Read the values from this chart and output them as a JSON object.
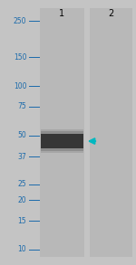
{
  "bg_color": "#c4c4c4",
  "lane_color": "#b8b8b8",
  "marker_labels": [
    "250",
    "150",
    "100",
    "75",
    "50",
    "37",
    "25",
    "20",
    "15",
    "10"
  ],
  "marker_positions": [
    250,
    150,
    100,
    75,
    50,
    37,
    25,
    20,
    15,
    10
  ],
  "band_kda": 46,
  "arrow_color": "#00b8c0",
  "lane_label_1": "1",
  "lane_label_2": "2",
  "ymin": 9,
  "ymax": 300,
  "marker_color": "#1a6aab",
  "tick_color": "#1a6aab",
  "label_fontsize": 5.5,
  "lane_label_fontsize": 7.0,
  "band_dark_color": "#2a2a2a",
  "band_mid_color": "#555555",
  "band_light_color": "#888888"
}
